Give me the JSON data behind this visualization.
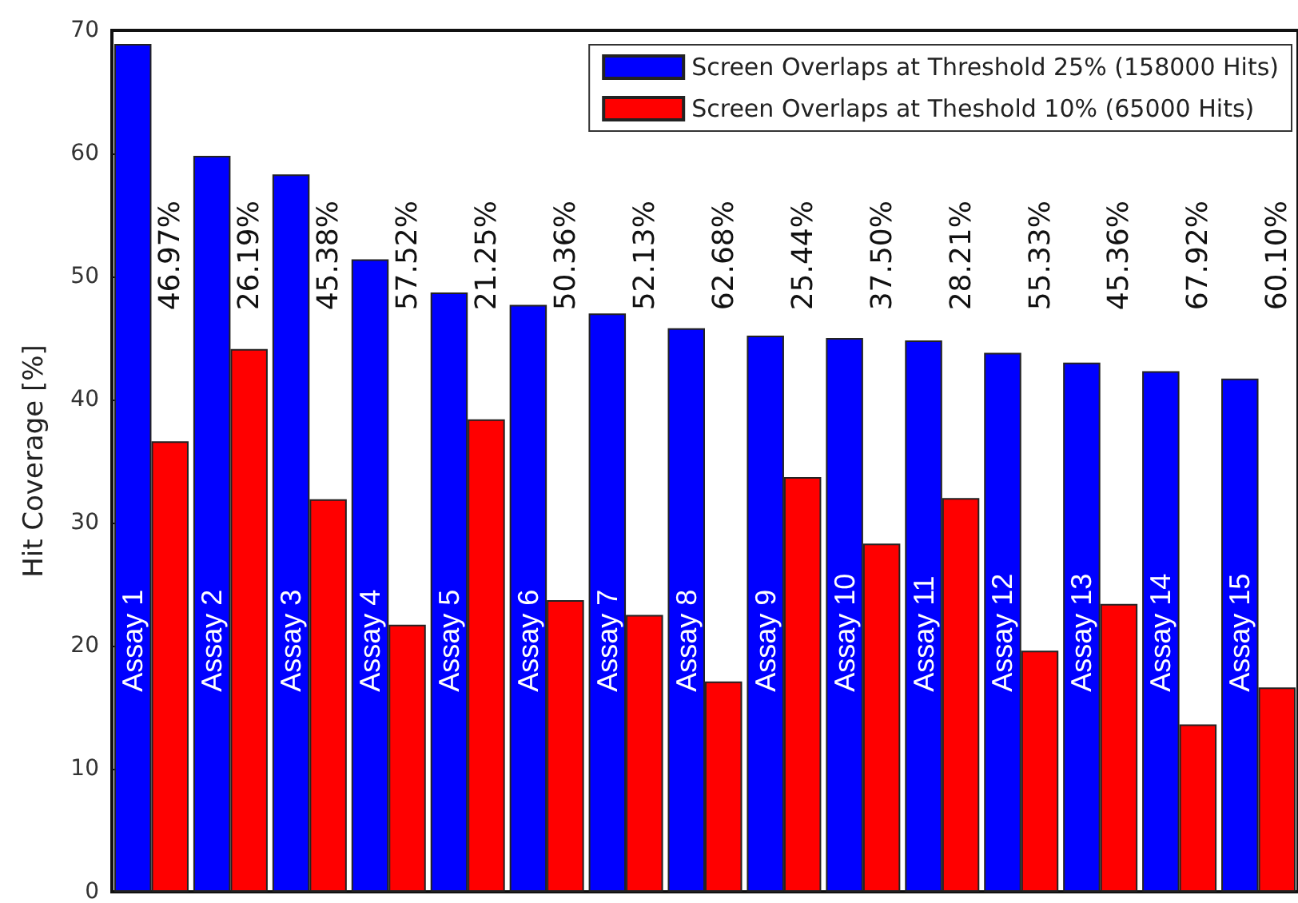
{
  "chart_data": {
    "type": "bar",
    "ylabel": "Hit Coverage [%]",
    "categories": [
      "Assay 1",
      "Assay 2",
      "Assay 3",
      "Assay 4",
      "Assay 5",
      "Assay 6",
      "Assay 7",
      "Assay 8",
      "Assay 9",
      "Assay 10",
      "Assay 11",
      "Assay 12",
      "Assay 13",
      "Assay 14",
      "Assay 15"
    ],
    "series": [
      {
        "name": "Screen Overlaps at Threshold 25% (158000 Hits)",
        "color": "#0000ff",
        "values": [
          68.9,
          59.8,
          58.3,
          51.4,
          48.7,
          47.7,
          47.0,
          45.8,
          45.2,
          45.0,
          44.8,
          43.8,
          43.0,
          42.3,
          41.7
        ]
      },
      {
        "name": "Screen Overlaps at Theshold 10% (65000 Hits)",
        "color": "#ff0000",
        "values": [
          36.6,
          44.1,
          31.9,
          21.7,
          38.4,
          23.7,
          22.5,
          17.1,
          33.7,
          28.3,
          32.0,
          19.6,
          23.4,
          13.6,
          16.6
        ]
      }
    ],
    "annotations": [
      "46.97%",
      "26.19%",
      "45.38%",
      "57.52%",
      "21.25%",
      "50.36%",
      "52.13%",
      "62.68%",
      "25.44%",
      "37.50%",
      "28.21%",
      "55.33%",
      "45.36%",
      "67.92%",
      "60.10%"
    ],
    "ylim": [
      0,
      70
    ],
    "yticks": [
      0,
      10,
      20,
      30,
      40,
      50,
      60,
      70
    ],
    "grid": false,
    "legend": "top right"
  }
}
